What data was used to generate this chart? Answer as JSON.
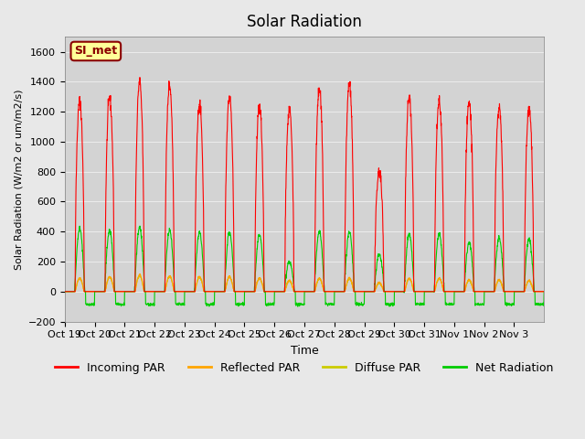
{
  "title": "Solar Radiation",
  "ylabel": "Solar Radiation (W/m2 or um/m2/s)",
  "xlabel": "Time",
  "ylim": [
    -200,
    1700
  ],
  "yticks": [
    -200,
    0,
    200,
    400,
    600,
    800,
    1000,
    1200,
    1400,
    1600
  ],
  "background_color": "#e8e8e8",
  "plot_bg_color": "#d3d3d3",
  "label_box_text": "SI_met",
  "label_box_bg": "#ffff99",
  "label_box_edge": "#8b0000",
  "colors": {
    "incoming": "#ff0000",
    "reflected": "#ffa500",
    "diffuse": "#cccc00",
    "net": "#00cc00"
  },
  "legend_labels": [
    "Incoming PAR",
    "Reflected PAR",
    "Diffuse PAR",
    "Net Radiation"
  ],
  "xtick_labels": [
    "Oct 19",
    "Oct 20",
    "Oct 21",
    "Oct 22",
    "Oct 23",
    "Oct 24",
    "Oct 25",
    "Oct 26",
    "Oct 27",
    "Oct 28",
    "Oct 29",
    "Oct 30",
    "Oct 31",
    "Nov 1",
    "Nov 2",
    "Nov 3"
  ],
  "n_days": 16,
  "figsize": [
    6.4,
    4.8
  ],
  "dpi": 100,
  "peaks_inc": [
    1270,
    1290,
    1400,
    1380,
    1250,
    1300,
    1240,
    1210,
    1350,
    1390,
    800,
    1290,
    1270,
    1260,
    1230,
    1220
  ],
  "peaks_net": [
    420,
    410,
    430,
    410,
    395,
    395,
    380,
    200,
    400,
    395,
    250,
    385,
    383,
    330,
    355,
    350
  ],
  "peaks_refl": [
    90,
    100,
    110,
    105,
    100,
    100,
    90,
    75,
    90,
    90,
    60,
    90,
    90,
    80,
    80,
    75
  ],
  "peaks_diff": [
    85,
    95,
    105,
    100,
    95,
    95,
    85,
    70,
    85,
    85,
    55,
    85,
    85,
    75,
    75,
    70
  ]
}
